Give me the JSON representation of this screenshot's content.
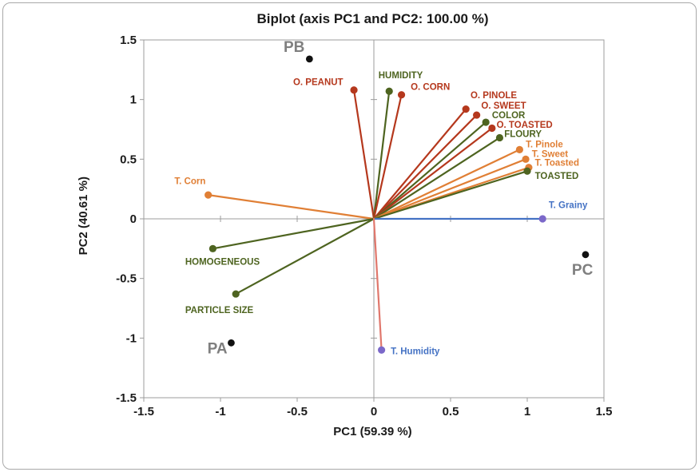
{
  "chart_data": {
    "type": "scatter",
    "subtype": "pca-biplot",
    "title": "Biplot (axis PC1 and PC2: 100.00 %)",
    "xlabel": "PC1 (59.39 %)",
    "ylabel": "PC2 (40.61 %)",
    "xlim": [
      -1.5,
      1.5
    ],
    "ylim": [
      -1.5,
      1.5
    ],
    "xticks": [
      -1.5,
      -1,
      -0.5,
      0,
      0.5,
      1,
      1.5
    ],
    "yticks": [
      -1.5,
      -1,
      -0.5,
      0,
      0.5,
      1,
      1.5
    ],
    "grid": "zero-lines-only",
    "legend": "none",
    "colors": {
      "red": "#b5381d",
      "green": "#4e6420",
      "orange": "#e07f35",
      "blue": "#4472c4",
      "salmon": "#e0776c",
      "purple": "#7b68c9",
      "sample_dot": "#111111",
      "sample_label": "#7f7f7f",
      "axis": "#9c9c9c"
    },
    "vectors": [
      {
        "label": "O. PEANUT",
        "x": -0.13,
        "y": 1.08,
        "line": "red",
        "dot": "red",
        "label_color": "red",
        "lx": -0.2,
        "ly": 1.12,
        "anchor": "end"
      },
      {
        "label": "HUMIDITY",
        "x": 0.1,
        "y": 1.07,
        "line": "green",
        "dot": "green",
        "label_color": "green",
        "lx": 0.03,
        "ly": 1.18,
        "anchor": "start"
      },
      {
        "label": "O. CORN",
        "x": 0.18,
        "y": 1.04,
        "line": "red",
        "dot": "red",
        "label_color": "red",
        "lx": 0.24,
        "ly": 1.08,
        "anchor": "start"
      },
      {
        "label": "O. PINOLE",
        "x": 0.6,
        "y": 0.92,
        "line": "red",
        "dot": "red",
        "label_color": "red",
        "lx": 0.63,
        "ly": 1.01,
        "anchor": "start"
      },
      {
        "label": "O. SWEET",
        "x": 0.67,
        "y": 0.87,
        "line": "red",
        "dot": "red",
        "label_color": "red",
        "lx": 0.7,
        "ly": 0.925,
        "anchor": "start"
      },
      {
        "label": "COLOR",
        "x": 0.73,
        "y": 0.81,
        "line": "green",
        "dot": "green",
        "label_color": "green",
        "lx": 0.77,
        "ly": 0.845,
        "anchor": "start"
      },
      {
        "label": "O. TOASTED",
        "x": 0.77,
        "y": 0.76,
        "line": "red",
        "dot": "red",
        "label_color": "red",
        "lx": 0.8,
        "ly": 0.765,
        "anchor": "start"
      },
      {
        "label": "FLOURY",
        "x": 0.82,
        "y": 0.68,
        "line": "green",
        "dot": "green",
        "label_color": "green",
        "lx": 0.85,
        "ly": 0.685,
        "anchor": "start"
      },
      {
        "label": "T. Pinole",
        "x": 0.95,
        "y": 0.58,
        "line": "orange",
        "dot": "orange",
        "label_color": "orange",
        "lx": 0.99,
        "ly": 0.6,
        "anchor": "start"
      },
      {
        "label": "T. Sweet",
        "x": 0.99,
        "y": 0.5,
        "line": "orange",
        "dot": "orange",
        "label_color": "orange",
        "lx": 1.03,
        "ly": 0.52,
        "anchor": "start"
      },
      {
        "label": "T. Toasted",
        "x": 1.01,
        "y": 0.43,
        "line": "orange",
        "dot": "orange",
        "label_color": "orange",
        "lx": 1.05,
        "ly": 0.445,
        "anchor": "start"
      },
      {
        "label": "TOASTED",
        "x": 1.0,
        "y": 0.4,
        "line": "green",
        "dot": "green",
        "label_color": "green",
        "lx": 1.05,
        "ly": 0.335,
        "anchor": "start"
      },
      {
        "label": "T. Grainy",
        "x": 1.1,
        "y": 0.0,
        "line": "blue",
        "dot": "purple",
        "label_color": "blue",
        "lx": 1.14,
        "ly": 0.09,
        "anchor": "start"
      },
      {
        "label": "T. Corn",
        "x": -1.08,
        "y": 0.2,
        "line": "orange",
        "dot": "orange",
        "label_color": "orange",
        "lx": -1.3,
        "ly": 0.29,
        "anchor": "start"
      },
      {
        "label": "HOMOGENEOUS",
        "x": -1.05,
        "y": -0.25,
        "line": "green",
        "dot": "green",
        "label_color": "green",
        "lx": -1.23,
        "ly": -0.385,
        "anchor": "start"
      },
      {
        "label": "PARTICLE SIZE",
        "x": -0.9,
        "y": -0.63,
        "line": "green",
        "dot": "green",
        "label_color": "green",
        "lx": -1.23,
        "ly": -0.79,
        "anchor": "start"
      },
      {
        "label": "T. Humidity",
        "x": 0.05,
        "y": -1.1,
        "line": "salmon",
        "dot": "purple",
        "label_color": "blue",
        "lx": 0.11,
        "ly": -1.135,
        "anchor": "start"
      }
    ],
    "samples": [
      {
        "label": "PB",
        "x": -0.42,
        "y": 1.34,
        "lx": -0.52,
        "ly": 1.4,
        "anchor": "middle"
      },
      {
        "label": "PC",
        "x": 1.38,
        "y": -0.3,
        "lx": 1.36,
        "ly": -0.47,
        "anchor": "middle"
      },
      {
        "label": "PA",
        "x": -0.93,
        "y": -1.04,
        "lx": -1.02,
        "ly": -1.13,
        "anchor": "middle"
      }
    ]
  }
}
